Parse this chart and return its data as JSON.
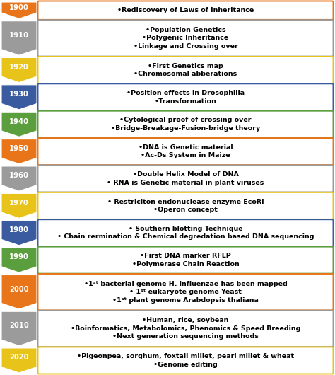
{
  "years": [
    "1900",
    "1910",
    "1920",
    "1930",
    "1940",
    "1950",
    "1960",
    "1970",
    "1980",
    "1990",
    "2000",
    "2010",
    "2020"
  ],
  "arrow_colors": [
    "#E8751A",
    "#9B9B9B",
    "#E8C31A",
    "#3B5BA0",
    "#5B9E3E",
    "#E8751A",
    "#9B9B9B",
    "#E8C31A",
    "#3B5BA0",
    "#5B9E3E",
    "#E8751A",
    "#9B9B9B",
    "#E8C31A"
  ],
  "box_border_colors": [
    "#E8751A",
    "#9B9B9B",
    "#E8C31A",
    "#3B5BA0",
    "#5B9E3E",
    "#E8751A",
    "#9B9B9B",
    "#E8C31A",
    "#3B5BA0",
    "#5B9E3E",
    "#E8751A",
    "#9B9B9B",
    "#E8C31A"
  ],
  "texts": [
    "•Rediscovery of Laws of Inheritance",
    "•Population Genetics\n•Polygenic Inheritance\n•Linkage and Crossing over",
    "•First Genetics map\n•Chromosomal abberations",
    "•Position effects in Drosophilla\n•Transformation",
    "•Cytological proof of crossing over\n•Bridge-Breakage-Fusion-bridge theory",
    "•DNA is Genetic material\n•Ac-Ds System in Maize",
    "•Double Helix Model of DNA\n• RNA is Genetic material in plant viruses",
    "• Restriciton endonuclease enzyme EcoRI\n•Operon concept",
    "• Southern blotting Technique\n• Chain rermination & Chemical degredation based DNA sequencing",
    "•First DNA marker RFLP\n•Polymerase Chain Reaction",
    "•1ˢᵗ bacterial genome H. influenzae has been mapped\n• 1ˢᵗ eukaryote genome Yeast\n•1ˢᵗ plant genome Arabdopsis thaliana",
    "•Human, rice, soybean\n•Boinformatics, Metabolomics, Phenomics & Speed Breeding\n•Next generation sequencing methods",
    "•Pigeonpea, sorghum, foxtail millet, pearl millet & wheat\n•Genome editing"
  ],
  "line_counts": [
    1,
    3,
    2,
    2,
    2,
    2,
    2,
    2,
    2,
    2,
    3,
    3,
    2
  ],
  "background_color": "#FFFFFF",
  "figwidth": 4.74,
  "figheight": 5.3,
  "dpi": 100
}
